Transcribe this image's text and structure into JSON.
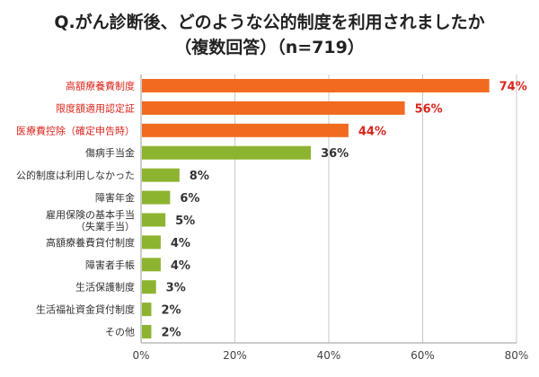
{
  "chart_data": {
    "type": "bar",
    "orientation": "horizontal",
    "title": "Q.がん診断後、どのような公的制度を利用されましたか",
    "subtitle": "（複数回答）（n=719）",
    "categories": [
      "高額療養費制度",
      "限度額適用認定証",
      "医療費控除（確定申告時）",
      "傷病手当金",
      "公的制度は利用しなかった",
      "障害年金",
      "雇用保険の基本手当\n（失業手当）",
      "高額療養費貸付制度",
      "障害者手帳",
      "生活保護制度",
      "生活福祉資金貸付制度",
      "その他"
    ],
    "values": [
      74,
      56,
      44,
      36,
      8,
      6,
      5,
      4,
      4,
      3,
      2,
      2
    ],
    "value_labels": [
      "74%",
      "56%",
      "44%",
      "36%",
      "8%",
      "6%",
      "5%",
      "4%",
      "4%",
      "3%",
      "2%",
      "2%"
    ],
    "highlighted": [
      true,
      true,
      true,
      false,
      false,
      false,
      false,
      false,
      false,
      false,
      false,
      false
    ],
    "xlim": [
      0,
      80
    ],
    "x_ticks": [
      "0%",
      "20%",
      "40%",
      "60%",
      "80%"
    ],
    "x_tick_values": [
      0,
      20,
      40,
      60,
      80
    ],
    "grid": true,
    "colors": {
      "highlight": "#f26a1f",
      "normal": "#8db430",
      "highlight_text": "#d9261c",
      "text": "#333333",
      "grid": "#c8c8c8"
    }
  }
}
